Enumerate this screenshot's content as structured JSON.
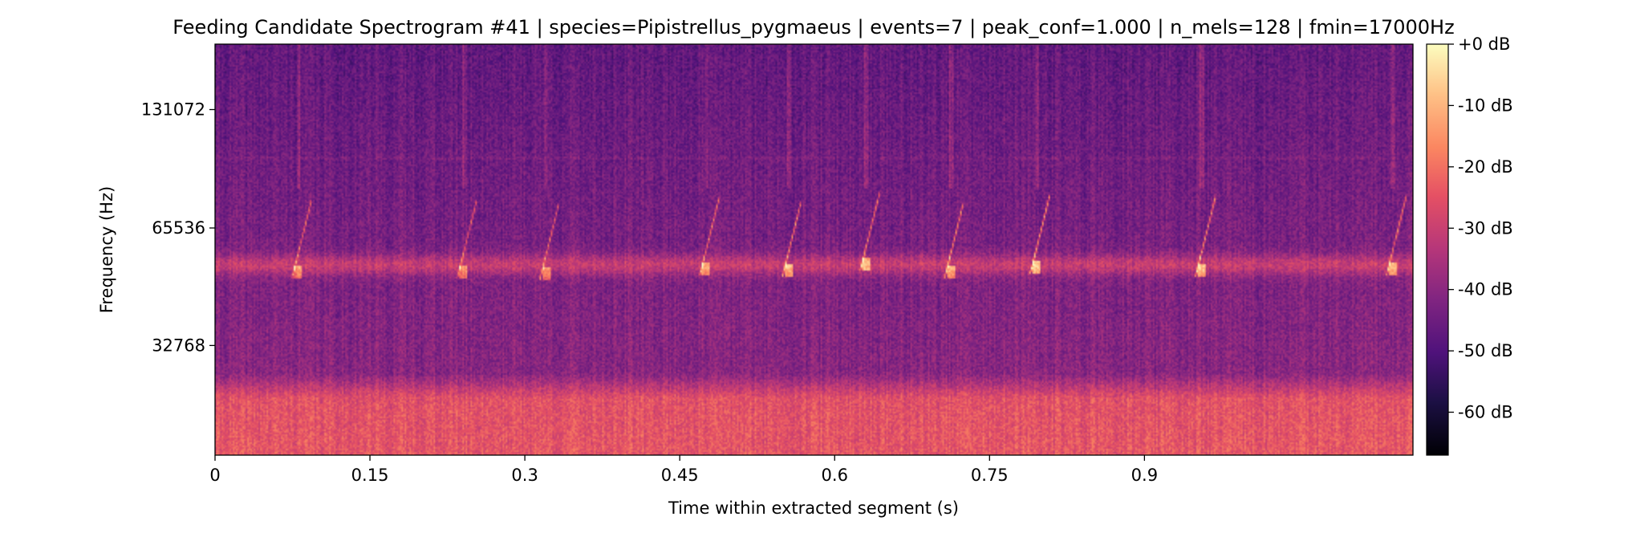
{
  "chart_data": {
    "type": "heatmap",
    "title": "Feeding Candidate Spectrogram #41 | species=Pipistrellus_pygmaeus | events=7 | peak_conf=1.000 | n_mels=128 | fmin=17000Hz",
    "xlabel": "Time within extracted segment (s)",
    "ylabel": "Frequency (Hz)",
    "xlim": [
      0,
      1.16
    ],
    "y_scale": "mel",
    "ylim": [
      17000,
      192000
    ],
    "x_ticks": [
      {
        "value": 0,
        "label": "0"
      },
      {
        "value": 0.15,
        "label": "0.15"
      },
      {
        "value": 0.3,
        "label": "0.3"
      },
      {
        "value": 0.45,
        "label": "0.45"
      },
      {
        "value": 0.6,
        "label": "0.6"
      },
      {
        "value": 0.75,
        "label": "0.75"
      },
      {
        "value": 0.9,
        "label": "0.9"
      }
    ],
    "y_ticks": [
      {
        "value": 32768,
        "label": "32768"
      },
      {
        "value": 65536,
        "label": "65536"
      },
      {
        "value": 131072,
        "label": "131072"
      }
    ],
    "colormap": "magma",
    "colorbar": {
      "range": [
        -67,
        0
      ],
      "ticks": [
        {
          "value": 0,
          "label": "+0 dB"
        },
        {
          "value": -10,
          "label": "-10 dB"
        },
        {
          "value": -20,
          "label": "-20 dB"
        },
        {
          "value": -30,
          "label": "-30 dB"
        },
        {
          "value": -40,
          "label": "-40 dB"
        },
        {
          "value": -50,
          "label": "-50 dB"
        },
        {
          "value": -60,
          "label": "-60 dB"
        }
      ]
    },
    "calls": [
      {
        "t": 0.08,
        "peak_freq": 51000,
        "strength": 0.8
      },
      {
        "t": 0.24,
        "peak_freq": 51000,
        "strength": 0.7
      },
      {
        "t": 0.32,
        "peak_freq": 50500,
        "strength": 0.75
      },
      {
        "t": 0.475,
        "peak_freq": 52000,
        "strength": 0.85
      },
      {
        "t": 0.555,
        "peak_freq": 51500,
        "strength": 1.0
      },
      {
        "t": 0.63,
        "peak_freq": 53000,
        "strength": 0.95
      },
      {
        "t": 0.712,
        "peak_freq": 51000,
        "strength": 0.95
      },
      {
        "t": 0.795,
        "peak_freq": 52500,
        "strength": 1.0
      },
      {
        "t": 0.955,
        "peak_freq": 51500,
        "strength": 1.0
      },
      {
        "t": 1.14,
        "peak_freq": 52000,
        "strength": 0.9
      }
    ]
  }
}
